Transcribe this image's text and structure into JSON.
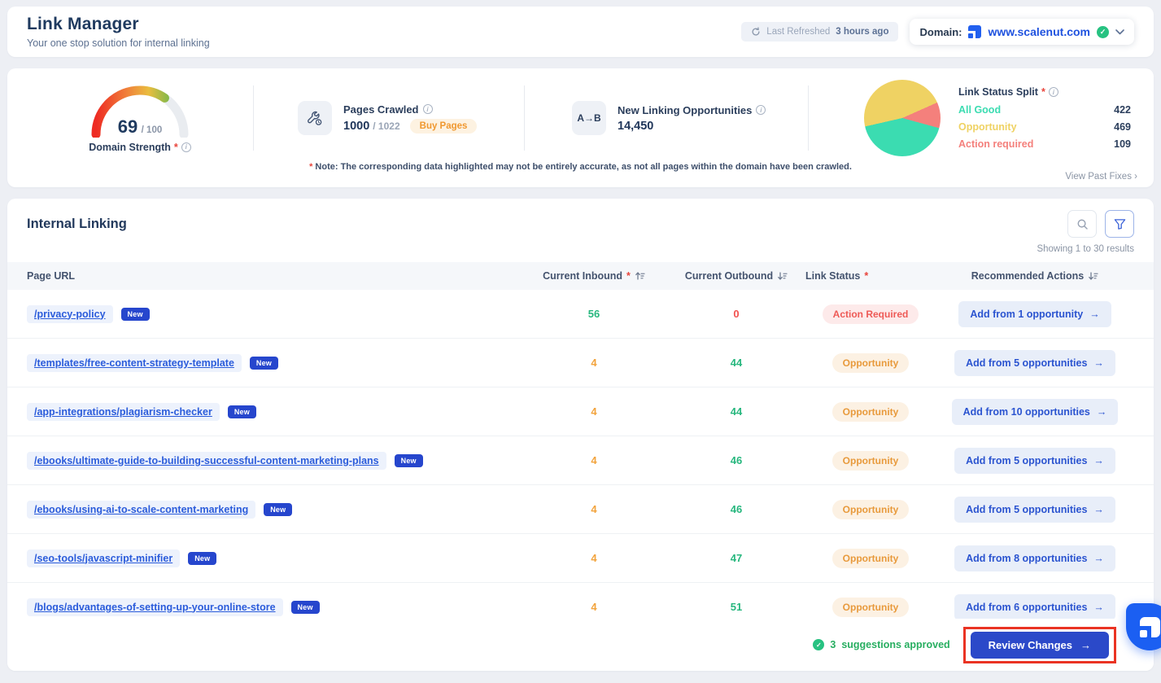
{
  "icons": {
    "asterisk": "*",
    "arrow_right": "→",
    "chevron_right": "›",
    "check": "✓",
    "info": "i"
  },
  "header": {
    "title": "Link Manager",
    "subtitle": "Your one stop solution for internal linking",
    "last_refreshed_label": "Last Refreshed",
    "last_refreshed_value": "3 hours ago",
    "domain_label": "Domain:",
    "domain_value": "www.scalenut.com"
  },
  "stats": {
    "domain_strength": {
      "score": "69",
      "total": "/ 100",
      "label": "Domain Strength"
    },
    "pages_crawled": {
      "label": "Pages Crawled",
      "value": "1000",
      "total": "/ 1022",
      "buy_label": "Buy Pages"
    },
    "opportunities": {
      "icon_text": "A→B",
      "label": "New Linking Opportunities",
      "value": "14,450"
    },
    "link_status_split": {
      "label": "Link Status Split",
      "items": [
        {
          "label": "All Good",
          "value": 422,
          "color": "#3bdcb1"
        },
        {
          "label": "Opportunity",
          "value": 469,
          "color": "#efd263"
        },
        {
          "label": "Action required",
          "value": 109,
          "color": "#f4807c"
        }
      ]
    },
    "note_star": "*",
    "note": "Note: The corresponding data highlighted may not be entirely accurate, as not all pages within the domain have been crawled.",
    "view_past_fixes": "View Past Fixes"
  },
  "chart_data": [
    {
      "type": "pie",
      "title": "Link Status Split",
      "categories": [
        "All Good",
        "Opportunity",
        "Action required"
      ],
      "values": [
        422,
        469,
        109
      ],
      "colors": [
        "#3bdcb1",
        "#efd263",
        "#f4807c"
      ],
      "legend_position": "right"
    },
    {
      "type": "gauge",
      "title": "Domain Strength",
      "value": 69,
      "range": [
        0,
        100
      ]
    }
  ],
  "table": {
    "title": "Internal Linking",
    "showing": "Showing 1 to 30 results",
    "columns": [
      {
        "label": "Page URL"
      },
      {
        "label": "Current Inbound"
      },
      {
        "label": "Current Outbound"
      },
      {
        "label": "Link Status"
      },
      {
        "label": "Recommended Actions"
      }
    ],
    "rows": [
      {
        "url": "/privacy-policy",
        "badge": "New",
        "inbound": "56",
        "inbound_color": "green",
        "outbound": "0",
        "outbound_color": "red",
        "status": "Action Required",
        "status_type": "action",
        "action": "Add from 1 opportunity"
      },
      {
        "url": "/templates/free-content-strategy-template",
        "badge": "New",
        "inbound": "4",
        "inbound_color": "orange",
        "outbound": "44",
        "outbound_color": "green",
        "status": "Opportunity",
        "status_type": "opportunity",
        "action": "Add from 5 opportunities"
      },
      {
        "url": "/app-integrations/plagiarism-checker",
        "badge": "New",
        "inbound": "4",
        "inbound_color": "orange",
        "outbound": "44",
        "outbound_color": "green",
        "status": "Opportunity",
        "status_type": "opportunity",
        "action": "Add from 10 opportunities"
      },
      {
        "url": "/ebooks/ultimate-guide-to-building-successful-content-marketing-plans",
        "badge": "New",
        "inbound": "4",
        "inbound_color": "orange",
        "outbound": "46",
        "outbound_color": "green",
        "status": "Opportunity",
        "status_type": "opportunity",
        "action": "Add from 5 opportunities"
      },
      {
        "url": "/ebooks/using-ai-to-scale-content-marketing",
        "badge": "New",
        "inbound": "4",
        "inbound_color": "orange",
        "outbound": "46",
        "outbound_color": "green",
        "status": "Opportunity",
        "status_type": "opportunity",
        "action": "Add from 5 opportunities"
      },
      {
        "url": "/seo-tools/javascript-minifier",
        "badge": "New",
        "inbound": "4",
        "inbound_color": "orange",
        "outbound": "47",
        "outbound_color": "green",
        "status": "Opportunity",
        "status_type": "opportunity",
        "action": "Add from 8 opportunities"
      },
      {
        "url": "/blogs/advantages-of-setting-up-your-online-store",
        "badge": "New",
        "inbound": "4",
        "inbound_color": "orange",
        "outbound": "51",
        "outbound_color": "green",
        "status": "Opportunity",
        "status_type": "opportunity",
        "action": "Add from 6 opportunities"
      }
    ]
  },
  "footer": {
    "approved_count": "3",
    "approved_text": "suggestions approved",
    "review_button": "Review Changes"
  }
}
